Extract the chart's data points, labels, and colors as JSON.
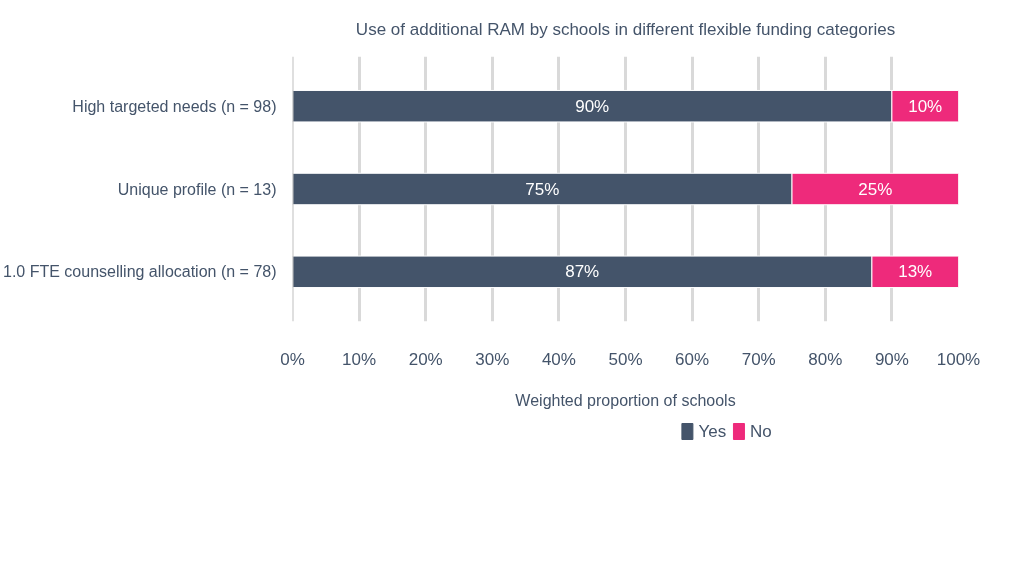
{
  "chart_data": {
    "type": "bar",
    "orientation": "horizontal",
    "stacked": true,
    "title": "Use of additional RAM by schools in different flexible funding categories",
    "xlabel": "Weighted proportion of schools",
    "categories": [
      "High targeted needs (n = 98)",
      "Unique profile (n = 13)",
      "1.0 FTE counselling allocation (n = 78)"
    ],
    "series": [
      {
        "name": "Yes",
        "color": "#44546a",
        "values": [
          90,
          75,
          87
        ],
        "value_labels": [
          "90%",
          "75%",
          "87%"
        ]
      },
      {
        "name": "No",
        "color": "#ee2a7b",
        "values": [
          10,
          25,
          13
        ],
        "value_labels": [
          "10%",
          "25%",
          "13%"
        ]
      }
    ],
    "xlim": [
      0,
      100
    ],
    "xticks": [
      {
        "value": 0,
        "label": "0%"
      },
      {
        "value": 10,
        "label": "10%"
      },
      {
        "value": 20,
        "label": "20%"
      },
      {
        "value": 30,
        "label": "30%"
      },
      {
        "value": 40,
        "label": "40%"
      },
      {
        "value": 50,
        "label": "50%"
      },
      {
        "value": 60,
        "label": "60%"
      },
      {
        "value": 70,
        "label": "70%"
      },
      {
        "value": 80,
        "label": "80%"
      },
      {
        "value": 90,
        "label": "90%"
      },
      {
        "value": 100,
        "label": "100%"
      }
    ],
    "grid": "x",
    "legend": "bottom"
  }
}
